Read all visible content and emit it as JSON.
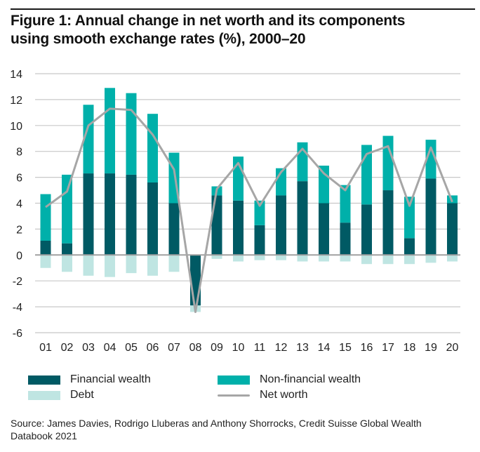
{
  "figure": {
    "title_line1": "Figure 1: Annual change in net worth and its components",
    "title_line2": "using smooth exchange rates (%), 2000–20",
    "source_line1": "Source: James Davies, Rodrigo Lluberas and Anthony Shorrocks, Credit Suisse Global Wealth",
    "source_line2": "Databook 2021"
  },
  "colors": {
    "financial": "#005a64",
    "non_financial": "#00b0aa",
    "debt": "#bfe5e2",
    "net_worth": "#a6a6a6",
    "grid": "#c8c8c8",
    "zero_line": "#a0a0a0"
  },
  "legend": {
    "financial": "Financial wealth",
    "non_financial": "Non-financial wealth",
    "debt": "Debt",
    "net_worth": "Net worth"
  },
  "chart_data": {
    "type": "bar",
    "stacked": true,
    "title": "Figure 1: Annual change in net worth and its components using smooth exchange rates (%), 2000–20",
    "xlabel": "",
    "ylabel": "",
    "ylim": [
      -6,
      14
    ],
    "yticks": [
      14,
      12,
      10,
      8,
      6,
      4,
      2,
      0,
      -2,
      -4,
      -6
    ],
    "grid": true,
    "legend_position": "bottom",
    "categories": [
      "01",
      "02",
      "03",
      "04",
      "05",
      "06",
      "07",
      "08",
      "09",
      "10",
      "11",
      "12",
      "13",
      "14",
      "15",
      "16",
      "17",
      "18",
      "19",
      "20"
    ],
    "series": [
      {
        "name": "Financial wealth",
        "kind": "bar",
        "values": [
          1.1,
          0.9,
          6.3,
          6.3,
          6.2,
          5.6,
          4.0,
          -3.9,
          4.6,
          4.2,
          2.3,
          4.6,
          5.7,
          4.0,
          2.5,
          3.9,
          5.0,
          1.3,
          5.9,
          4.0
        ]
      },
      {
        "name": "Non-financial wealth",
        "kind": "bar",
        "values": [
          3.6,
          5.3,
          5.3,
          6.6,
          6.3,
          5.3,
          3.9,
          0.0,
          0.7,
          3.4,
          1.9,
          2.1,
          3.0,
          2.9,
          2.9,
          4.6,
          4.2,
          3.2,
          3.0,
          0.6
        ]
      },
      {
        "name": "Debt",
        "kind": "bar",
        "values": [
          -1.0,
          -1.3,
          -1.6,
          -1.7,
          -1.4,
          -1.6,
          -1.3,
          -0.5,
          -0.3,
          -0.5,
          -0.4,
          -0.4,
          -0.5,
          -0.5,
          -0.5,
          -0.7,
          -0.7,
          -0.7,
          -0.6,
          -0.5
        ]
      },
      {
        "name": "Net worth",
        "kind": "line",
        "values": [
          3.7,
          4.9,
          10.0,
          11.3,
          11.2,
          9.3,
          6.6,
          -4.4,
          5.1,
          7.1,
          3.8,
          6.4,
          8.2,
          6.3,
          5.0,
          7.8,
          8.4,
          3.8,
          8.3,
          4.1
        ]
      }
    ]
  }
}
